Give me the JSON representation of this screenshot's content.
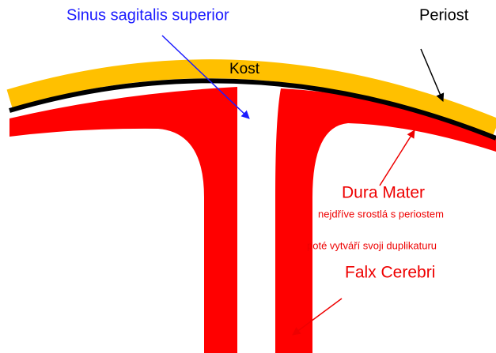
{
  "labels": {
    "sinus": "Sinus sagitalis superior",
    "periost": "Periost",
    "kost": "Kost",
    "dura": "Dura Mater",
    "note1": "nejdříve srostlá s periostem",
    "note2": "poté vytváří svoji duplikaturu",
    "falx": "Falx Cerebri"
  }
}
